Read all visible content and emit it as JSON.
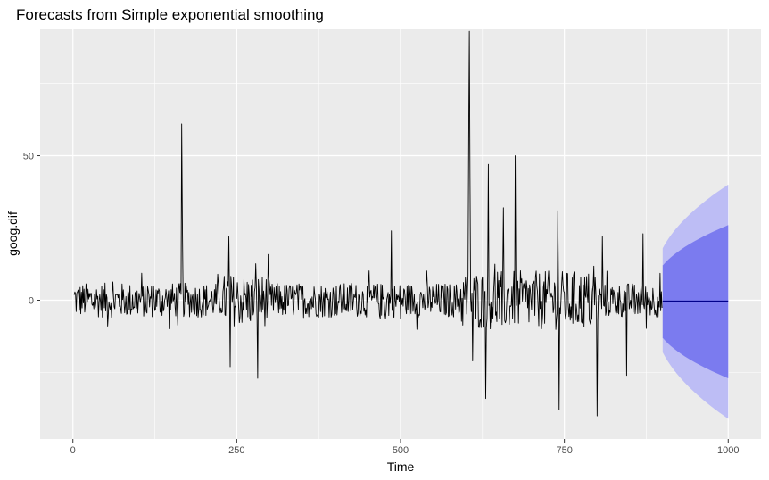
{
  "chart_data": {
    "type": "line",
    "title": "Forecasts from Simple exponential smoothing",
    "xlabel": "Time",
    "ylabel": "goog.dif",
    "xlim": [
      -50,
      1050
    ],
    "ylim": [
      -48,
      94
    ],
    "x_ticks": [
      0,
      250,
      500,
      750,
      1000
    ],
    "y_ticks": [
      0,
      50
    ],
    "x_minor_ticks": [
      125,
      375,
      625,
      875
    ],
    "y_minor_ticks": [
      -25,
      25,
      75
    ],
    "grid": true,
    "colors": {
      "panel": "#ebebeb",
      "grid": "#ffffff",
      "series": "#000000",
      "pi80": "#7b7bef",
      "pi95": "#bdbdf5",
      "forecast": "#00008b"
    },
    "series": [
      {
        "x_start": 2,
        "x_end": 899,
        "points": 898,
        "spikes": [
          {
            "x": 166,
            "y": 61
          },
          {
            "x": 167,
            "y": 28
          },
          {
            "x": 240,
            "y": -23
          },
          {
            "x": 238,
            "y": 22
          },
          {
            "x": 282,
            "y": -27
          },
          {
            "x": 486,
            "y": 24
          },
          {
            "x": 605,
            "y": 93
          },
          {
            "x": 604,
            "y": 56
          },
          {
            "x": 606,
            "y": 42
          },
          {
            "x": 610,
            "y": -21
          },
          {
            "x": 630,
            "y": -34
          },
          {
            "x": 634,
            "y": 47
          },
          {
            "x": 675,
            "y": 50
          },
          {
            "x": 657,
            "y": 32
          },
          {
            "x": 740,
            "y": 31
          },
          {
            "x": 742,
            "y": -38
          },
          {
            "x": 800,
            "y": -40
          },
          {
            "x": 808,
            "y": 22
          },
          {
            "x": 845,
            "y": -26
          },
          {
            "x": 870,
            "y": 23
          }
        ],
        "typical_amplitude": 6
      }
    ],
    "forecast": {
      "x_start": 900,
      "x_end": 1000,
      "point": -0.3,
      "pi80": {
        "start": [
          -13,
          12
        ],
        "end": [
          -27,
          26
        ]
      },
      "pi95": {
        "start": [
          -18,
          18
        ],
        "end": [
          -41,
          40
        ]
      }
    }
  }
}
